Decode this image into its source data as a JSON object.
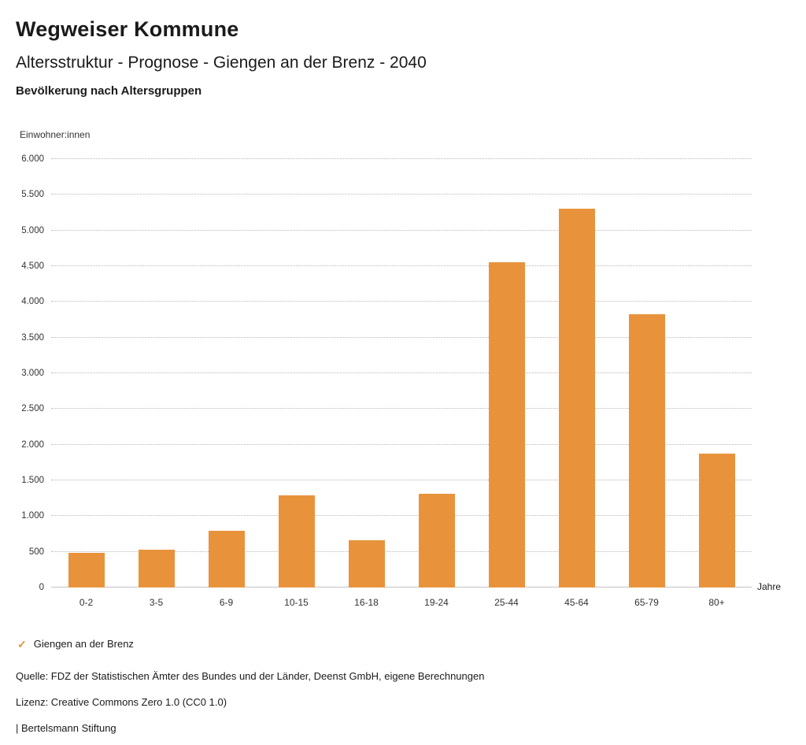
{
  "header": {
    "title": "Wegweiser Kommune",
    "subtitle": "Altersstruktur - Prognose - Giengen an der Brenz - 2040",
    "section_title": "Bevölkerung nach Altersgruppen"
  },
  "chart_data": {
    "type": "bar",
    "title": "Bevölkerung nach Altersgruppen",
    "categories": [
      "0-2",
      "3-5",
      "6-9",
      "10-15",
      "16-18",
      "19-24",
      "25-44",
      "45-64",
      "65-79",
      "80+"
    ],
    "values": [
      480,
      530,
      790,
      1290,
      660,
      1310,
      4550,
      5300,
      3830,
      1870
    ],
    "series_name": "Giengen an der Brenz",
    "ylabel": "Einwohner:innen",
    "xlabel": "Jahre",
    "ylim": [
      0,
      6000
    ],
    "ytick_step": 500,
    "bar_color": "#E8933C",
    "grid": "horizontal-dotted",
    "legend_position": "bottom-left"
  },
  "legend": {
    "check_icon": "✓",
    "check_color": "#E8933C",
    "label": "Giengen an der Brenz"
  },
  "footer": {
    "source": "Quelle: FDZ der Statistischen Ämter des Bundes und der Länder, Deenst GmbH, eigene Berechnungen",
    "license": "Lizenz: Creative Commons Zero 1.0 (CC0 1.0)",
    "branding": "| Bertelsmann Stiftung"
  }
}
